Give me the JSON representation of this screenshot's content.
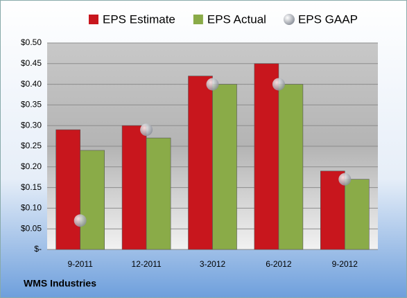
{
  "chart_data": {
    "type": "bar",
    "footnote": "WMS Industries",
    "categories": [
      "9-2011",
      "12-2011",
      "3-2012",
      "6-2012",
      "9-2012"
    ],
    "series": [
      {
        "name": "EPS Estimate",
        "color": "#c8161d",
        "values": [
          0.29,
          0.3,
          0.42,
          0.45,
          0.19
        ]
      },
      {
        "name": "EPS Actual",
        "color": "#8aab48",
        "values": [
          0.24,
          0.27,
          0.4,
          0.4,
          0.17
        ]
      },
      {
        "name": "EPS GAAP",
        "color": "#b8bcc4",
        "type": "scatter",
        "values": [
          0.07,
          0.29,
          0.4,
          0.4,
          0.17
        ]
      }
    ],
    "ylim": [
      0,
      0.5
    ],
    "yticks": [
      {
        "value": 0,
        "label": "$-"
      },
      {
        "value": 0.05,
        "label": "$0.05"
      },
      {
        "value": 0.1,
        "label": "$0.10"
      },
      {
        "value": 0.15,
        "label": "$0.15"
      },
      {
        "value": 0.2,
        "label": "$0.20"
      },
      {
        "value": 0.25,
        "label": "$0.25"
      },
      {
        "value": 0.3,
        "label": "$0.30"
      },
      {
        "value": 0.35,
        "label": "$0.35"
      },
      {
        "value": 0.4,
        "label": "$0.40"
      },
      {
        "value": 0.45,
        "label": "$0.45"
      },
      {
        "value": 0.5,
        "label": "$0.50"
      }
    ],
    "grid": true
  }
}
